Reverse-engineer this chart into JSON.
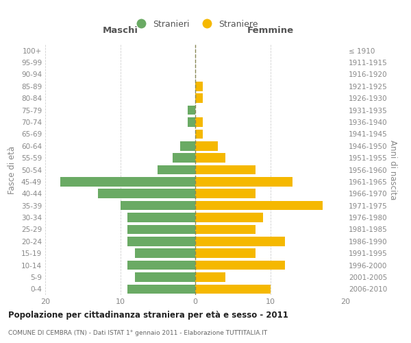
{
  "age_groups": [
    "0-4",
    "5-9",
    "10-14",
    "15-19",
    "20-24",
    "25-29",
    "30-34",
    "35-39",
    "40-44",
    "45-49",
    "50-54",
    "55-59",
    "60-64",
    "65-69",
    "70-74",
    "75-79",
    "80-84",
    "85-89",
    "90-94",
    "95-99",
    "100+"
  ],
  "birth_years": [
    "2006-2010",
    "2001-2005",
    "1996-2000",
    "1991-1995",
    "1986-1990",
    "1981-1985",
    "1976-1980",
    "1971-1975",
    "1966-1970",
    "1961-1965",
    "1956-1960",
    "1951-1955",
    "1946-1950",
    "1941-1945",
    "1936-1940",
    "1931-1935",
    "1926-1930",
    "1921-1925",
    "1916-1920",
    "1911-1915",
    "≤ 1910"
  ],
  "maschi": [
    9,
    8,
    9,
    8,
    9,
    9,
    9,
    10,
    13,
    18,
    5,
    3,
    2,
    0,
    1,
    1,
    0,
    0,
    0,
    0,
    0
  ],
  "femmine": [
    10,
    4,
    12,
    8,
    12,
    8,
    9,
    17,
    8,
    13,
    8,
    4,
    3,
    1,
    1,
    0,
    1,
    1,
    0,
    0,
    0
  ],
  "color_maschi": "#6aaa64",
  "color_femmine": "#f5b800",
  "title": "Popolazione per cittadinanza straniera per età e sesso - 2011",
  "subtitle": "COMUNE DI CEMBRA (TN) - Dati ISTAT 1° gennaio 2011 - Elaborazione TUTTITALIA.IT",
  "ylabel_left": "Fasce di età",
  "ylabel_right": "Anni di nascita",
  "label_maschi": "Maschi",
  "label_femmine": "Femmine",
  "legend_maschi": "Stranieri",
  "legend_femmine": "Straniere",
  "xlim": 20,
  "background_color": "#ffffff",
  "grid_color": "#d0d0d0"
}
